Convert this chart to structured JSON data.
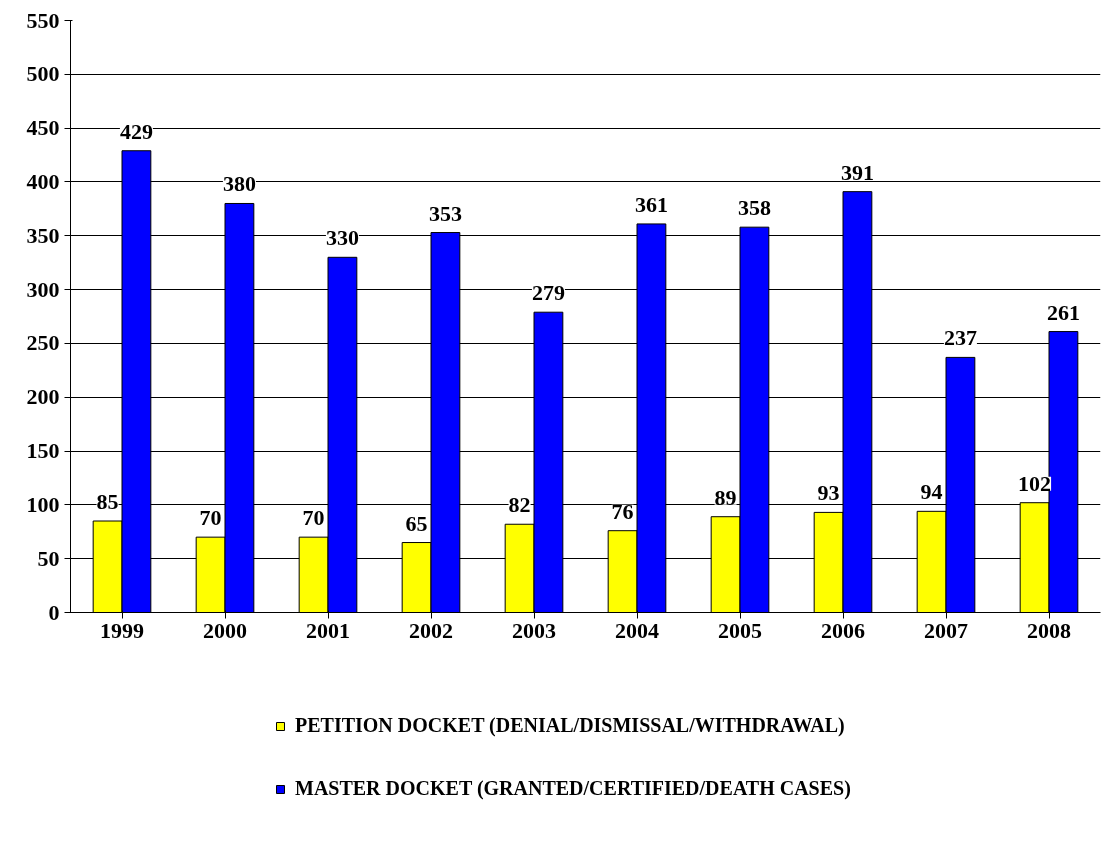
{
  "chart_data": {
    "type": "bar",
    "categories": [
      "1999",
      "2000",
      "2001",
      "2002",
      "2003",
      "2004",
      "2005",
      "2006",
      "2007",
      "2008"
    ],
    "series": [
      {
        "name": "PETITION DOCKET (DENIAL/DISMISSAL/WITHDRAWAL)",
        "color": "#ffff00",
        "values": [
          85,
          70,
          70,
          65,
          82,
          76,
          89,
          93,
          94,
          102
        ]
      },
      {
        "name": "MASTER DOCKET (GRANTED/CERTIFIED/DEATH CASES)",
        "color": "#0000ff",
        "values": [
          429,
          380,
          330,
          353,
          279,
          361,
          358,
          391,
          237,
          261
        ]
      }
    ],
    "ylim": [
      0,
      550
    ],
    "yticks": [
      0,
      50,
      100,
      150,
      200,
      250,
      300,
      350,
      400,
      450,
      500,
      550
    ],
    "grid": "y",
    "legend": "bottom",
    "data_labels": true
  }
}
